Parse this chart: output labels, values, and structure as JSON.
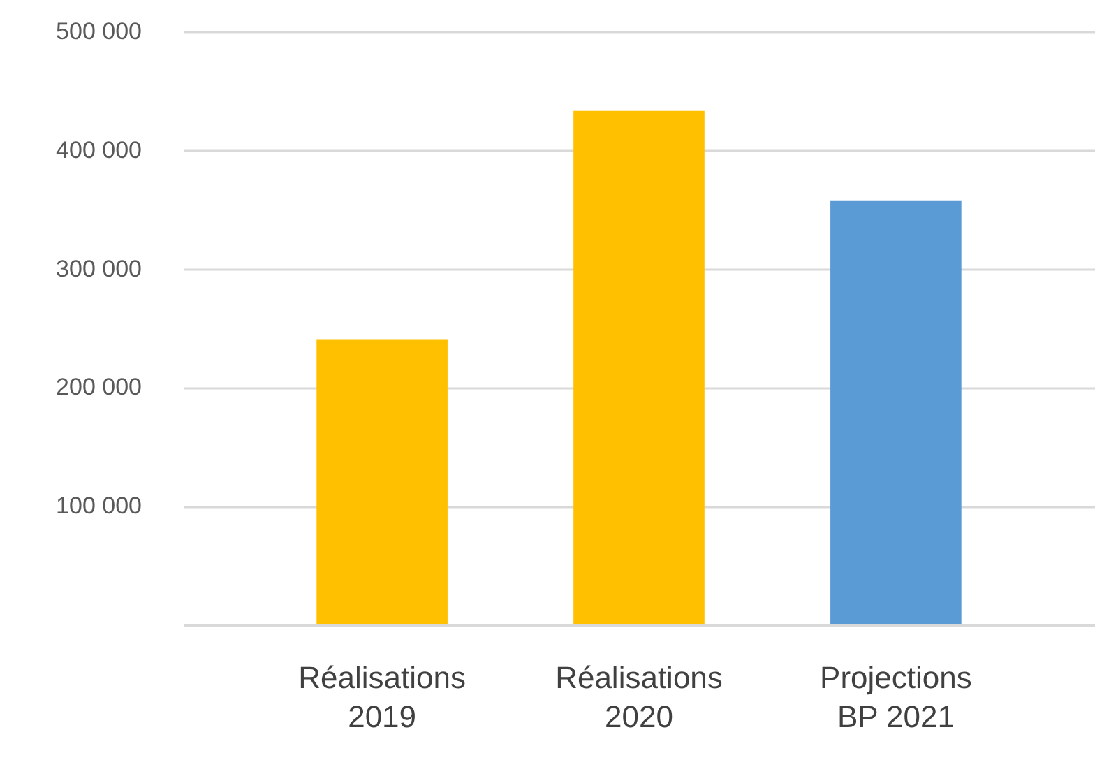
{
  "chart_data": {
    "type": "bar",
    "categories": [
      "Réalisations\n2019",
      "Réalisations\n2020",
      "Projections\nBP 2021"
    ],
    "values": [
      240000,
      433000,
      357000
    ],
    "colors": [
      "#ffc000",
      "#ffc000",
      "#5b9bd5"
    ],
    "ylim": [
      0,
      500000
    ],
    "yticks": [
      {
        "value": 0,
        "label": null
      },
      {
        "value": 100000,
        "label": "100 000"
      },
      {
        "value": 200000,
        "label": "200 000"
      },
      {
        "value": 300000,
        "label": "300 000"
      },
      {
        "value": 400000,
        "label": "400 000"
      },
      {
        "value": 500000,
        "label": "500 000"
      }
    ],
    "grid": "y"
  }
}
